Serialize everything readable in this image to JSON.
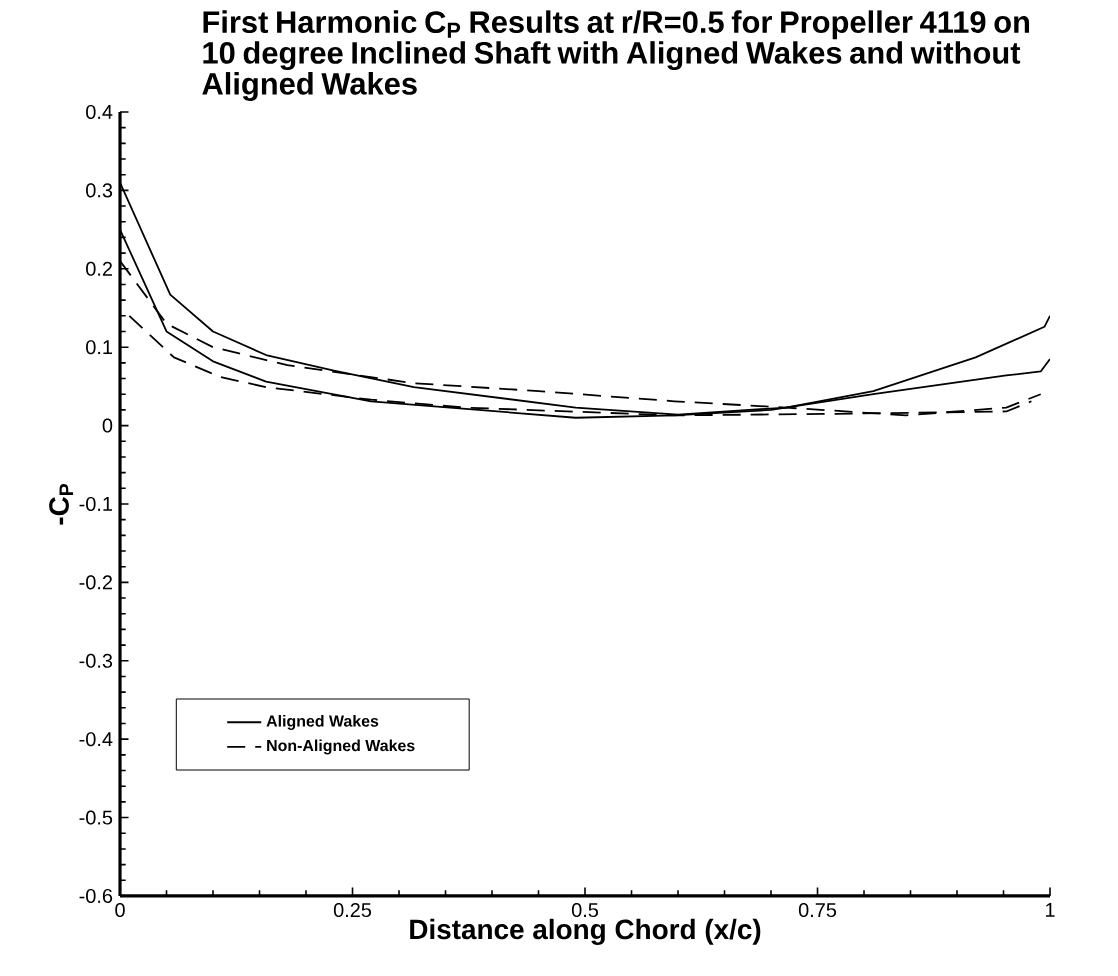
{
  "chart_data": {
    "type": "line",
    "title": "First Harmonic C$_{P}$ Results at r/R=0.5 for Propeller 4119 on 10 degree Inclined Shaft with Aligned Wakes and without Aligned Wakes",
    "xlabel": "Distance along Chord (x/c)",
    "ylabel": "-C$_{P}$",
    "series": [
      {
        "name": "Aligned Wakes",
        "color": "#000000",
        "line_style": "solid",
        "x": [
          0,
          0.054,
          0.1,
          0.157,
          0.23,
          0.316,
          0.49,
          0.6,
          0.716,
          0.81,
          0.92,
          0.994,
          1.0
        ],
        "values": [
          0.31,
          0.167,
          0.12,
          0.09,
          0.07,
          0.049,
          0.023,
          0.014,
          0.023,
          0.044,
          0.087,
          0.126,
          0.14
        ]
      },
      {
        "color": "#000000",
        "line_style": "solid",
        "x": [
          0,
          0.05,
          0.1,
          0.157,
          0.27,
          0.49,
          0.596,
          0.7,
          0.81,
          0.953,
          0.99,
          1.0
        ],
        "values": [
          0.25,
          0.12,
          0.082,
          0.056,
          0.031,
          0.01,
          0.013,
          0.02,
          0.04,
          0.064,
          0.069,
          0.085
        ]
      },
      {
        "name": "Non-Aligned Wakes",
        "color": "#000000",
        "line_style": "dashed",
        "x": [
          0,
          0.05,
          0.1,
          0.18,
          0.316,
          0.45,
          0.596,
          0.716,
          0.845,
          0.953,
          0.99
        ],
        "values": [
          0.21,
          0.13,
          0.1,
          0.077,
          0.054,
          0.044,
          0.031,
          0.023,
          0.013,
          0.023,
          0.04
        ]
      },
      {
        "color": "#000000",
        "line_style": "dashed",
        "x": [
          0.01,
          0.058,
          0.108,
          0.157,
          0.27,
          0.37,
          0.596,
          0.77,
          0.953,
          0.98
        ],
        "values": [
          0.14,
          0.087,
          0.062,
          0.049,
          0.033,
          0.023,
          0.013,
          0.015,
          0.018,
          0.031
        ]
      }
    ],
    "xlim": [
      0,
      1
    ],
    "xticks": [
      0,
      0.25,
      0.5,
      0.75,
      1
    ],
    "ylim": [
      -0.6,
      0.4
    ],
    "yticks": [
      -0.6,
      -0.5,
      -0.4,
      -0.3,
      -0.2,
      -0.1,
      0,
      0.1,
      0.2,
      0.3,
      0.4
    ],
    "grid": false,
    "legend": "bottom left"
  }
}
